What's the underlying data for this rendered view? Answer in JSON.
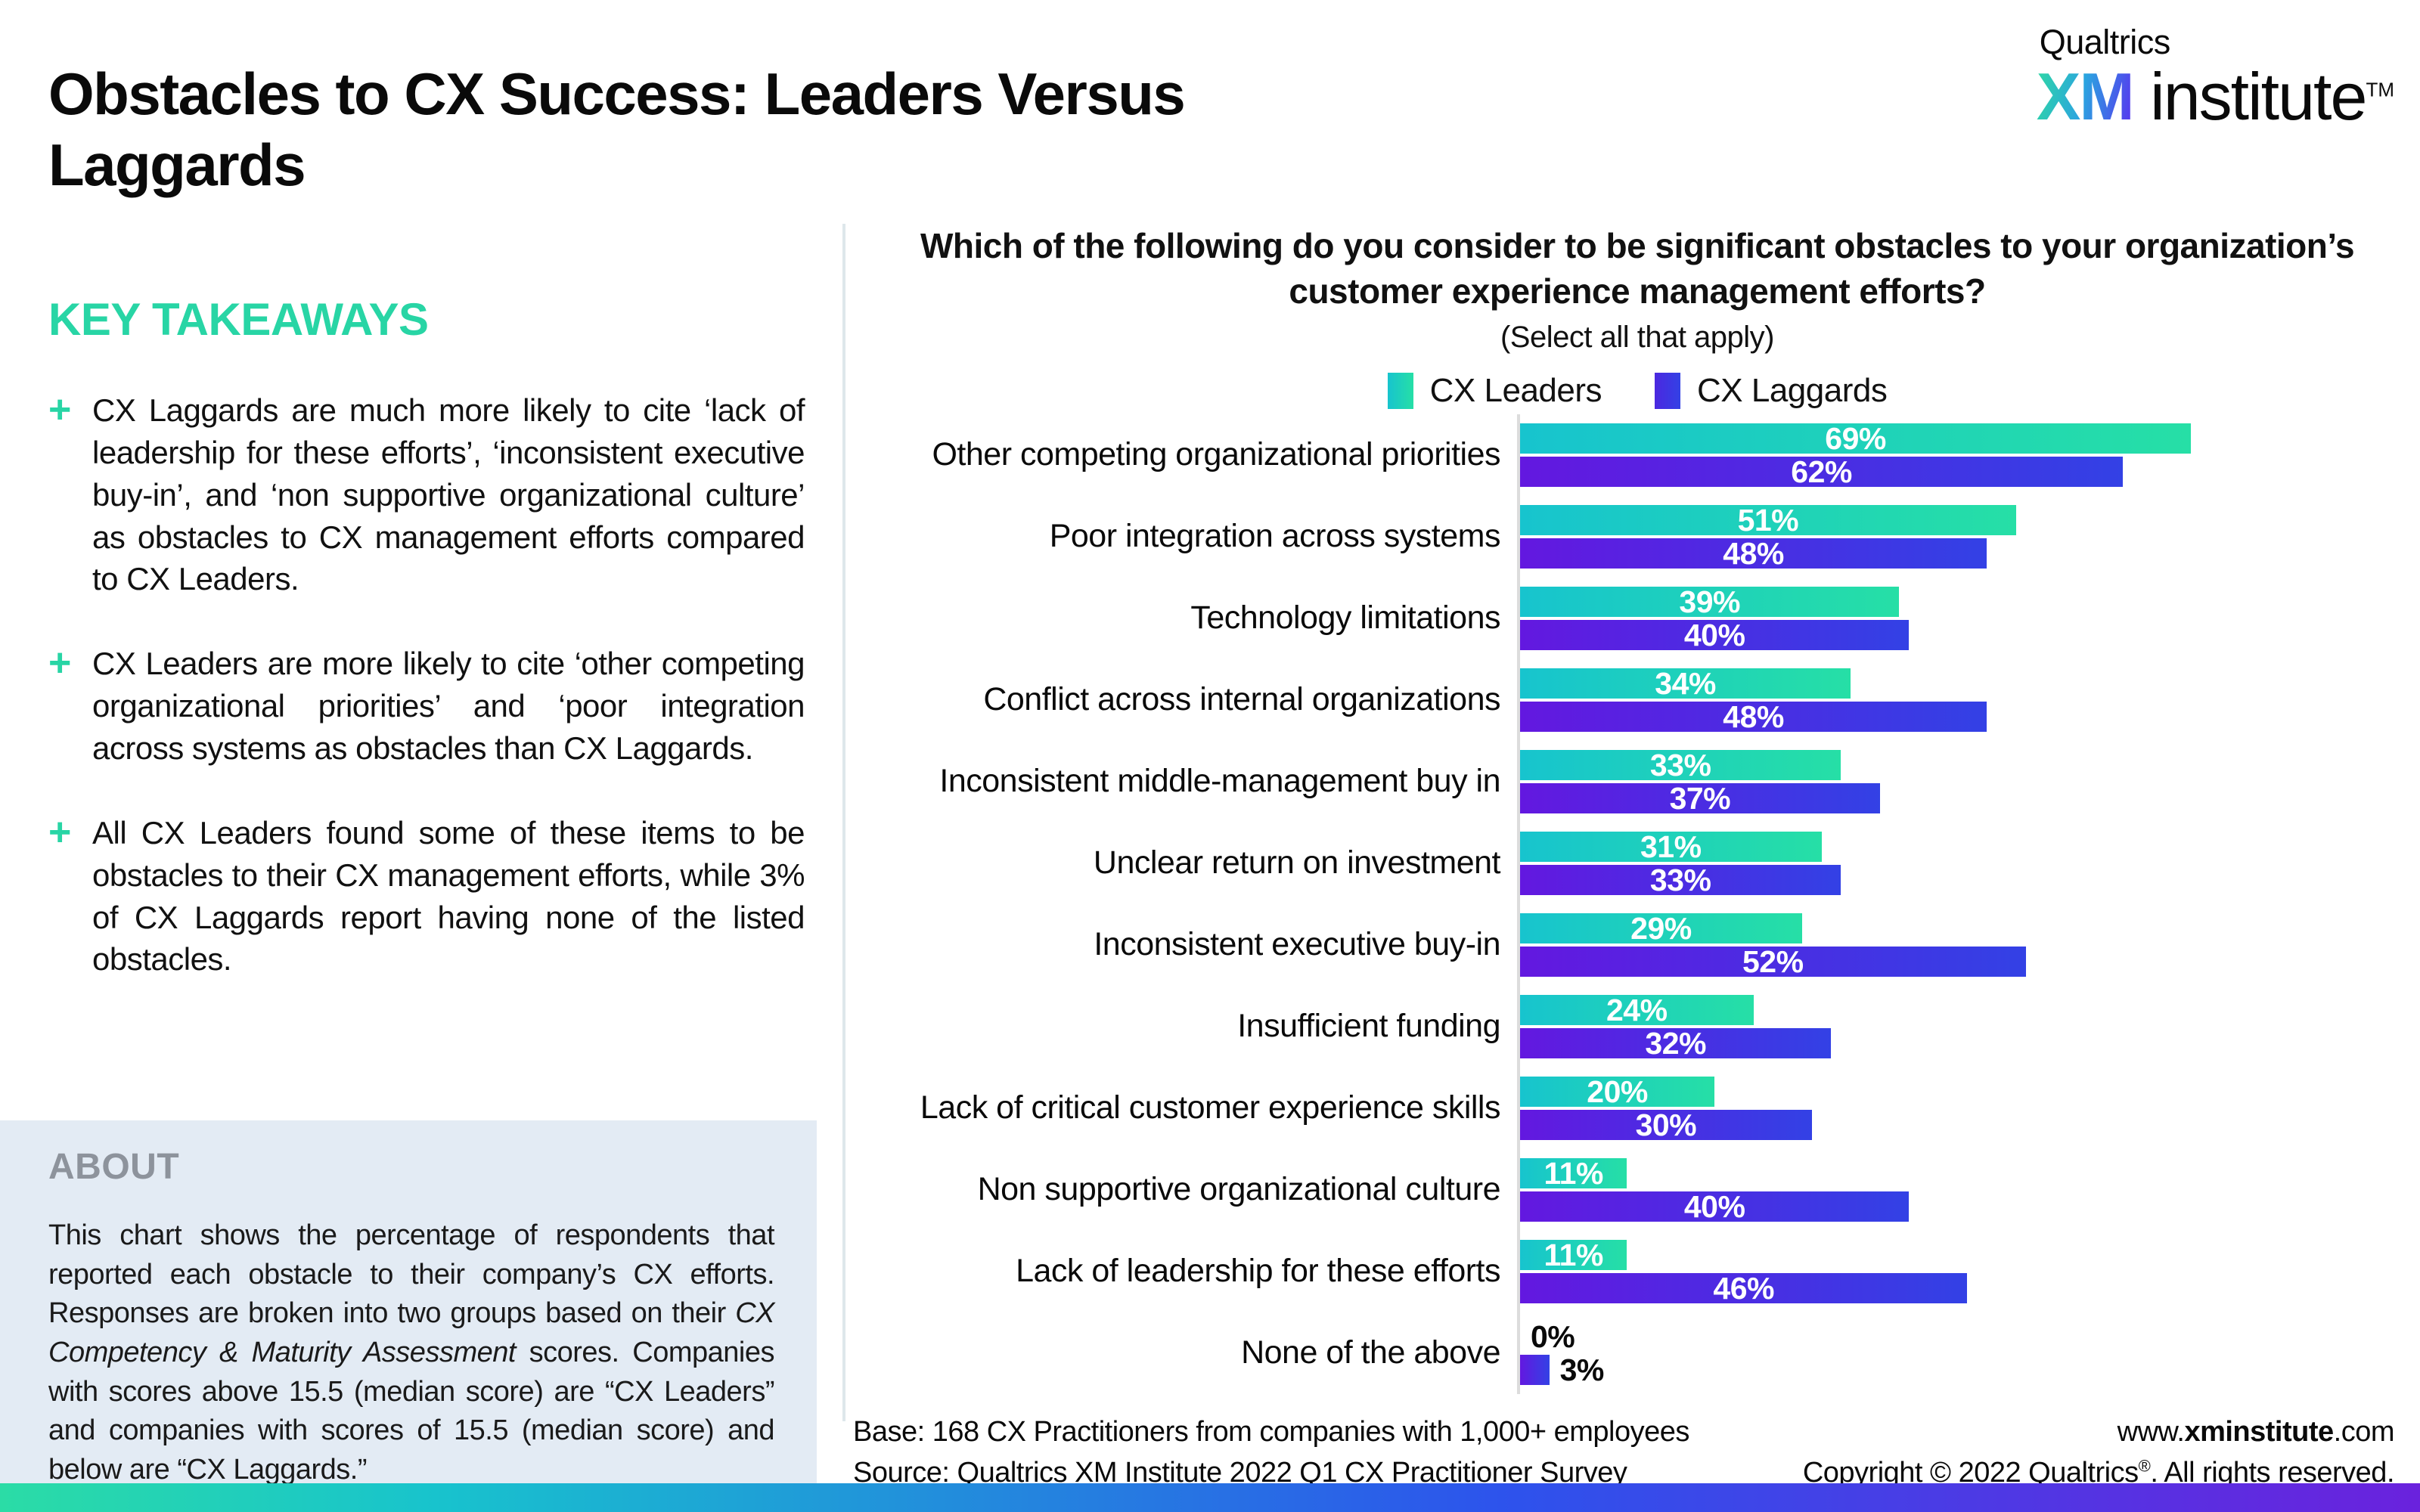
{
  "page": {
    "title": "Obstacles to CX Success: Leaders Versus Laggards"
  },
  "brand": {
    "company": "Qualtrics",
    "xm": "XM",
    "institute": "institute",
    "tm": "TM"
  },
  "key_takeaways": {
    "heading": "KEY TAKEAWAYS",
    "bullets": [
      "CX Laggards are much more likely to cite ‘lack of leadership for these efforts’, ‘inconsistent executive buy-in’, and ‘non supportive organizational culture’ as obstacles to CX management efforts compared to CX Leaders.",
      "CX Leaders are more likely to cite ‘other competing organizational priorities’ and ‘poor integration across systems as obstacles than CX Laggards.",
      "All CX Leaders found some of these items to be obstacles to their CX management efforts, while 3% of CX Laggards report having none of the listed obstacles."
    ]
  },
  "about": {
    "heading": "ABOUT",
    "before": "This chart shows the percentage of respondents that reported each obstacle to their company’s CX efforts. Responses are broken into two groups based on their ",
    "italic": "CX Competency & Maturity Assessment",
    "after": " scores. Companies with scores above 15.5 (median score) are “CX Leaders” and companies with scores of 15.5 (median score) and below are “CX Laggards.”"
  },
  "question": {
    "title": "Which of the following do you consider to be significant obstacles to your organization’s customer experience management efforts?",
    "subtitle": "(Select all that apply)"
  },
  "legend": {
    "leaders_label": "CX Leaders",
    "laggards_label": "CX Laggards"
  },
  "chart_data": {
    "type": "bar",
    "orientation": "horizontal",
    "title": "Which of the following do you consider to be significant obstacles to your organization’s customer experience management efforts?",
    "subtitle": "(Select all that apply)",
    "value_format": "percent",
    "xlim": [
      0,
      91
    ],
    "legend_position": "top",
    "grid": false,
    "categories": [
      "Other competing organizational priorities",
      "Poor integration across systems",
      "Technology limitations",
      "Conflict across internal organizations",
      "Inconsistent middle-management buy in",
      "Unclear return on investment",
      "Inconsistent executive buy-in",
      "Insufficient funding",
      "Lack of critical customer experience skills",
      "Non supportive organizational culture",
      "Lack of leadership for these efforts",
      "None of the above"
    ],
    "series": [
      {
        "name": "CX Leaders",
        "values": [
          69,
          51,
          39,
          34,
          33,
          31,
          29,
          24,
          20,
          11,
          11,
          0
        ]
      },
      {
        "name": "CX Laggards",
        "values": [
          62,
          48,
          40,
          48,
          37,
          33,
          52,
          32,
          30,
          40,
          46,
          3
        ]
      }
    ],
    "colors": {
      "leaders_gradient": [
        "#17C4CE",
        "#26DFA6"
      ],
      "laggards_gradient": [
        "#6318E0",
        "#3341E5"
      ]
    },
    "small_value_threshold": 5
  },
  "footer": {
    "base": "Base: 168 CX Practitioners from companies with 1,000+ employees",
    "source": "Source: Qualtrics XM Institute 2022 Q1 CX Practitioner Survey",
    "site_prefix": "www.",
    "site_bold": "xminstitute",
    "site_suffix": ".com",
    "copyright_prefix": "Copyright © 2022 Qualtrics",
    "copyright_reg": "®",
    "copyright_suffix": ". All rights reserved."
  },
  "colors": {
    "accent_teal": "#28D5A5",
    "about_bg": "#E3EBF4",
    "about_heading_gray": "#8D939C",
    "divider": "#DEE7EB",
    "axis": "#DCDCDC",
    "bottom_bar_gradient": [
      "#2BDCA6",
      "#18C3CD",
      "#2D53EC",
      "#6A22DD"
    ],
    "xm_logo_gradient": [
      "#2ED9A3",
      "#2BA4E0",
      "#5A2FF0"
    ]
  }
}
